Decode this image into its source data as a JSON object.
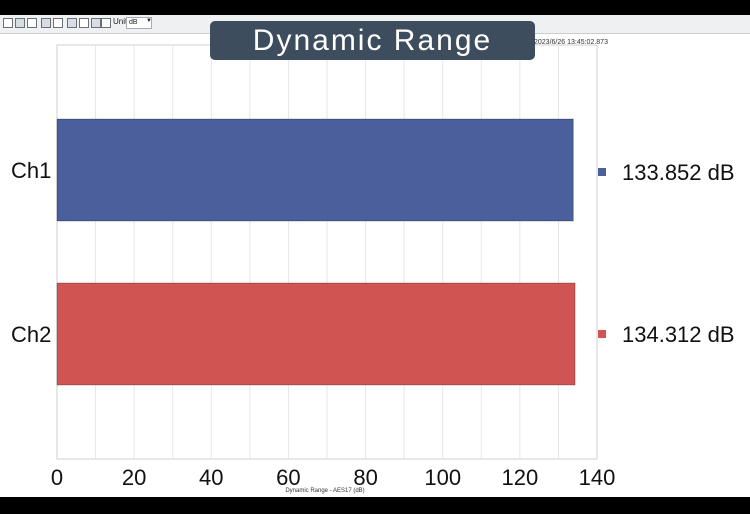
{
  "toolbar": {
    "unit_label": "Unit",
    "unit_value": "dB",
    "timestamp": "2023/6/26 13:45:02.873"
  },
  "chart_data": {
    "type": "bar",
    "orientation": "horizontal",
    "title": "Dynamic Range",
    "xlabel": "Dynamic Range - AES17 (dB)",
    "ylabel": "",
    "categories": [
      "Ch1",
      "Ch2"
    ],
    "values": [
      133.852,
      134.312
    ],
    "value_labels": [
      "133.852 dB",
      "134.312 dB"
    ],
    "colors": [
      "#4a5f9b",
      "#d05452"
    ],
    "xlim": [
      0,
      140
    ],
    "xticks": [
      0,
      20,
      40,
      60,
      80,
      100,
      120,
      140
    ],
    "grid": true,
    "legend": "right"
  }
}
